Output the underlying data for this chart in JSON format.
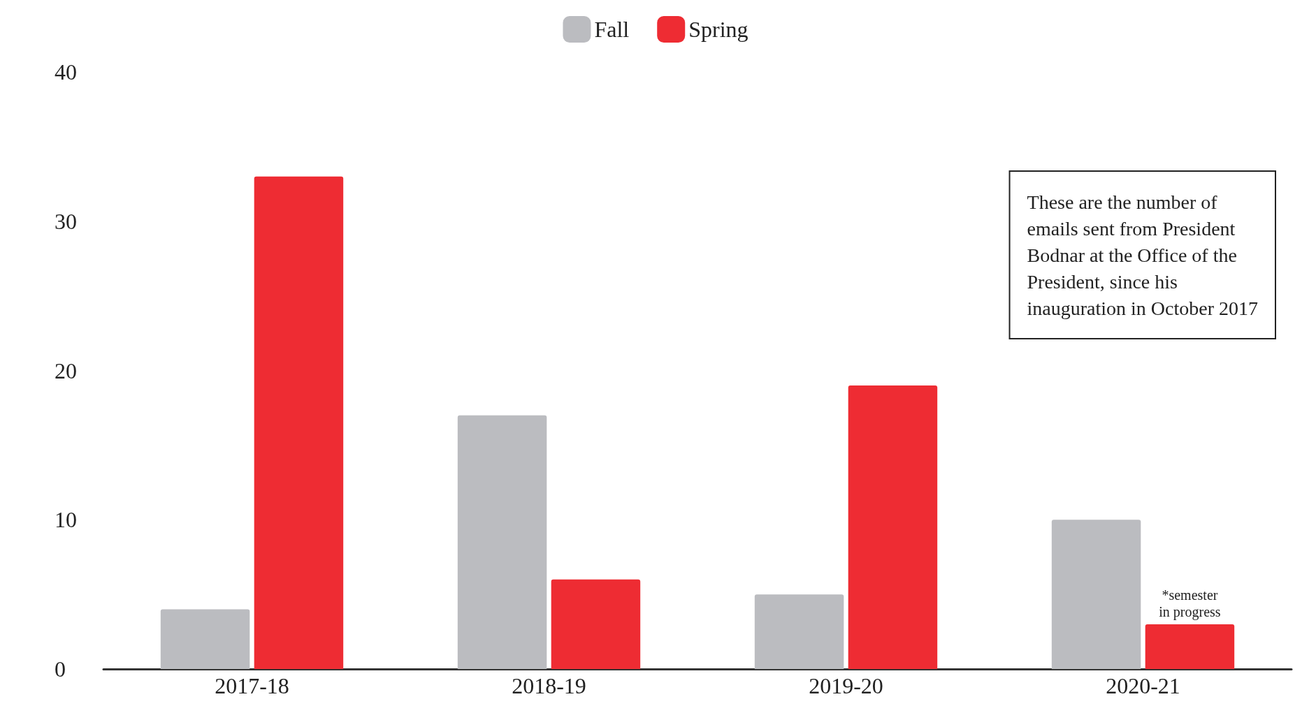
{
  "chart_data": {
    "type": "bar",
    "categories": [
      "2017-18",
      "2018-19",
      "2019-20",
      "2020-21"
    ],
    "series": [
      {
        "name": "Fall",
        "color": "#bbbcc0",
        "values": [
          4,
          17,
          5,
          10
        ]
      },
      {
        "name": "Spring",
        "color": "#ee2c33",
        "values": [
          33,
          6,
          19,
          3
        ]
      }
    ],
    "ylim": [
      0,
      40
    ],
    "yticks": [
      0,
      10,
      20,
      30,
      40
    ],
    "grid": false,
    "legend": "top",
    "annotations": [
      "These are the number of emails sent from President Bodnar at the Office of the President, since his inauguration in October 2017",
      {
        "text": "*semester in progress",
        "x": "2020-21",
        "y": 3
      }
    ]
  }
}
